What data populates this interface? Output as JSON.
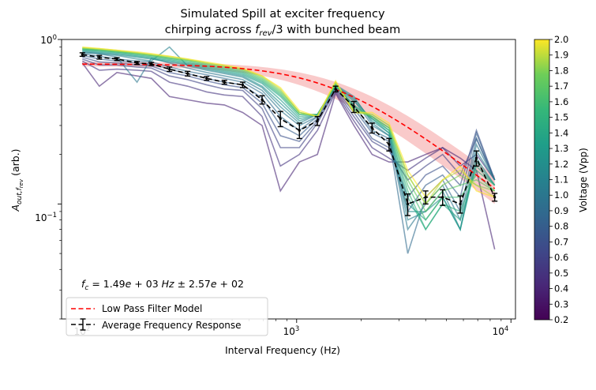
{
  "chart_data": {
    "type": "line",
    "title_line1": "Simulated Spill at exciter frequency",
    "title_line2": "chirping across f_rev/3 with bunched beam",
    "xlabel": "Interval Frequency (Hz)",
    "ylabel": "A_out,f_rev (arb.)",
    "x_scale": "log",
    "y_scale": "log",
    "xlim": [
      80,
      10500
    ],
    "ylim": [
      0.02,
      1.0
    ],
    "x_tick_labels": [
      "10^2",
      "10^3",
      "10^4"
    ],
    "y_tick_labels": [
      "10^-1",
      "10^0"
    ],
    "annotation": "f_c = 1.49e+03 Hz ± 2.57e+02",
    "legend": {
      "placement": "lower-left",
      "entries": [
        "Low Pass Filter Model",
        "Average Frequency Response"
      ]
    },
    "colorbar": {
      "label": "Voltage (Vpp)",
      "colormap": "viridis",
      "min": 0.2,
      "max": 2.0,
      "tick_labels": [
        "0.2",
        "0.3",
        "0.4",
        "0.5",
        "0.6",
        "0.7",
        "0.8",
        "0.9",
        "1.0",
        "1.1",
        "1.2",
        "1.3",
        "1.4",
        "1.5",
        "1.6",
        "1.7",
        "1.8",
        "1.9",
        "2.0"
      ]
    },
    "frequencies": [
      100,
      120,
      145,
      180,
      210,
      255,
      310,
      380,
      460,
      560,
      690,
      840,
      1030,
      1250,
      1520,
      1850,
      2250,
      2700,
      3300,
      4000,
      4800,
      5800,
      6900,
      8400
    ],
    "average_response": {
      "values": [
        0.81,
        0.78,
        0.76,
        0.72,
        0.71,
        0.66,
        0.62,
        0.58,
        0.55,
        0.53,
        0.43,
        0.33,
        0.28,
        0.32,
        0.5,
        0.39,
        0.29,
        0.23,
        0.1,
        0.11,
        0.11,
        0.1,
        0.19,
        0.11
      ],
      "errors": [
        0.02,
        0.02,
        0.015,
        0.015,
        0.015,
        0.02,
        0.02,
        0.015,
        0.015,
        0.02,
        0.025,
        0.035,
        0.03,
        0.02,
        0.02,
        0.03,
        0.02,
        0.02,
        0.015,
        0.01,
        0.012,
        0.012,
        0.02,
        0.006
      ],
      "color": "#000000"
    },
    "low_pass_model": {
      "cutoff_hz": 1490,
      "cutoff_err_hz": 257,
      "amplitude": 0.71,
      "x": [
        100,
        8400
      ],
      "color": "#ff0000",
      "band_color": "#f08080"
    },
    "voltage_traces": [
      {
        "voltage": 0.4,
        "values": [
          0.72,
          0.52,
          0.63,
          0.6,
          0.58,
          0.45,
          0.43,
          0.41,
          0.4,
          0.36,
          0.3,
          0.12,
          0.18,
          0.2,
          0.47,
          0.3,
          0.2,
          0.18,
          0.18,
          0.2,
          0.22,
          0.19,
          0.16,
          0.053
        ]
      },
      {
        "voltage": 0.5,
        "values": [
          0.74,
          0.65,
          0.66,
          0.65,
          0.64,
          0.55,
          0.52,
          0.48,
          0.46,
          0.45,
          0.34,
          0.17,
          0.2,
          0.28,
          0.48,
          0.32,
          0.22,
          0.19,
          0.16,
          0.19,
          0.22,
          0.17,
          0.2,
          0.14
        ]
      },
      {
        "voltage": 0.6,
        "values": [
          0.76,
          0.7,
          0.7,
          0.68,
          0.67,
          0.6,
          0.57,
          0.53,
          0.5,
          0.49,
          0.38,
          0.22,
          0.22,
          0.31,
          0.49,
          0.34,
          0.24,
          0.21,
          0.14,
          0.17,
          0.2,
          0.15,
          0.25,
          0.14
        ]
      },
      {
        "voltage": 0.7,
        "values": [
          0.78,
          0.73,
          0.72,
          0.7,
          0.69,
          0.63,
          0.6,
          0.56,
          0.53,
          0.51,
          0.41,
          0.26,
          0.24,
          0.32,
          0.5,
          0.36,
          0.25,
          0.22,
          0.11,
          0.15,
          0.17,
          0.13,
          0.28,
          0.14
        ]
      },
      {
        "voltage": 0.8,
        "values": [
          0.8,
          0.76,
          0.74,
          0.72,
          0.71,
          0.66,
          0.62,
          0.58,
          0.55,
          0.53,
          0.44,
          0.3,
          0.26,
          0.33,
          0.51,
          0.38,
          0.27,
          0.24,
          0.09,
          0.13,
          0.15,
          0.11,
          0.27,
          0.14
        ]
      },
      {
        "voltage": 0.9,
        "values": [
          0.82,
          0.79,
          0.76,
          0.74,
          0.73,
          0.68,
          0.64,
          0.61,
          0.58,
          0.55,
          0.47,
          0.34,
          0.28,
          0.34,
          0.52,
          0.4,
          0.28,
          0.25,
          0.05,
          0.11,
          0.14,
          0.09,
          0.25,
          0.14
        ]
      },
      {
        "voltage": 1.0,
        "values": [
          0.83,
          0.82,
          0.78,
          0.55,
          0.77,
          0.72,
          0.67,
          0.63,
          0.6,
          0.57,
          0.49,
          0.37,
          0.3,
          0.34,
          0.53,
          0.43,
          0.3,
          0.26,
          0.07,
          0.1,
          0.13,
          0.08,
          0.23,
          0.14
        ]
      },
      {
        "voltage": 1.1,
        "values": [
          0.84,
          0.82,
          0.8,
          0.76,
          0.74,
          0.9,
          0.69,
          0.65,
          0.62,
          0.59,
          0.51,
          0.39,
          0.31,
          0.35,
          0.53,
          0.45,
          0.31,
          0.26,
          0.08,
          0.09,
          0.12,
          0.07,
          0.21,
          0.14
        ]
      },
      {
        "voltage": 1.2,
        "values": [
          0.85,
          0.83,
          0.81,
          0.78,
          0.76,
          0.73,
          0.7,
          0.66,
          0.63,
          0.6,
          0.52,
          0.41,
          0.32,
          0.35,
          0.52,
          0.44,
          0.32,
          0.27,
          0.09,
          0.09,
          0.11,
          0.07,
          0.19,
          0.13
        ]
      },
      {
        "voltage": 1.3,
        "values": [
          0.86,
          0.84,
          0.82,
          0.79,
          0.77,
          0.74,
          0.71,
          0.67,
          0.64,
          0.61,
          0.54,
          0.43,
          0.33,
          0.35,
          0.52,
          0.42,
          0.33,
          0.27,
          0.1,
          0.08,
          0.11,
          0.07,
          0.18,
          0.13
        ]
      },
      {
        "voltage": 1.4,
        "values": [
          0.87,
          0.85,
          0.83,
          0.8,
          0.78,
          0.75,
          0.72,
          0.68,
          0.65,
          0.62,
          0.55,
          0.45,
          0.34,
          0.35,
          0.52,
          0.4,
          0.33,
          0.28,
          0.11,
          0.07,
          0.1,
          0.08,
          0.17,
          0.13
        ]
      },
      {
        "voltage": 1.5,
        "values": [
          0.87,
          0.86,
          0.84,
          0.81,
          0.79,
          0.76,
          0.73,
          0.69,
          0.66,
          0.63,
          0.56,
          0.46,
          0.35,
          0.35,
          0.53,
          0.39,
          0.34,
          0.28,
          0.12,
          0.07,
          0.1,
          0.09,
          0.16,
          0.13
        ]
      },
      {
        "voltage": 1.6,
        "values": [
          0.88,
          0.86,
          0.84,
          0.82,
          0.8,
          0.77,
          0.74,
          0.7,
          0.67,
          0.64,
          0.57,
          0.47,
          0.35,
          0.35,
          0.53,
          0.38,
          0.34,
          0.29,
          0.13,
          0.08,
          0.11,
          0.11,
          0.15,
          0.12
        ]
      },
      {
        "voltage": 1.7,
        "values": [
          0.88,
          0.87,
          0.85,
          0.82,
          0.8,
          0.77,
          0.75,
          0.71,
          0.68,
          0.65,
          0.58,
          0.48,
          0.36,
          0.34,
          0.54,
          0.37,
          0.34,
          0.29,
          0.14,
          0.09,
          0.12,
          0.13,
          0.14,
          0.12
        ]
      },
      {
        "voltage": 1.8,
        "values": [
          0.89,
          0.87,
          0.85,
          0.83,
          0.81,
          0.78,
          0.75,
          0.72,
          0.69,
          0.66,
          0.59,
          0.49,
          0.36,
          0.34,
          0.55,
          0.37,
          0.35,
          0.3,
          0.15,
          0.1,
          0.13,
          0.15,
          0.13,
          0.12
        ]
      },
      {
        "voltage": 1.9,
        "values": [
          0.89,
          0.88,
          0.86,
          0.83,
          0.81,
          0.79,
          0.76,
          0.72,
          0.69,
          0.66,
          0.6,
          0.5,
          0.36,
          0.34,
          0.55,
          0.36,
          0.35,
          0.3,
          0.15,
          0.1,
          0.14,
          0.16,
          0.13,
          0.11
        ]
      },
      {
        "voltage": 2.0,
        "values": [
          0.9,
          0.88,
          0.86,
          0.84,
          0.82,
          0.79,
          0.76,
          0.73,
          0.7,
          0.67,
          0.6,
          0.51,
          0.37,
          0.34,
          0.56,
          0.36,
          0.36,
          0.31,
          0.16,
          0.11,
          0.14,
          0.17,
          0.12,
          0.11
        ]
      }
    ]
  }
}
